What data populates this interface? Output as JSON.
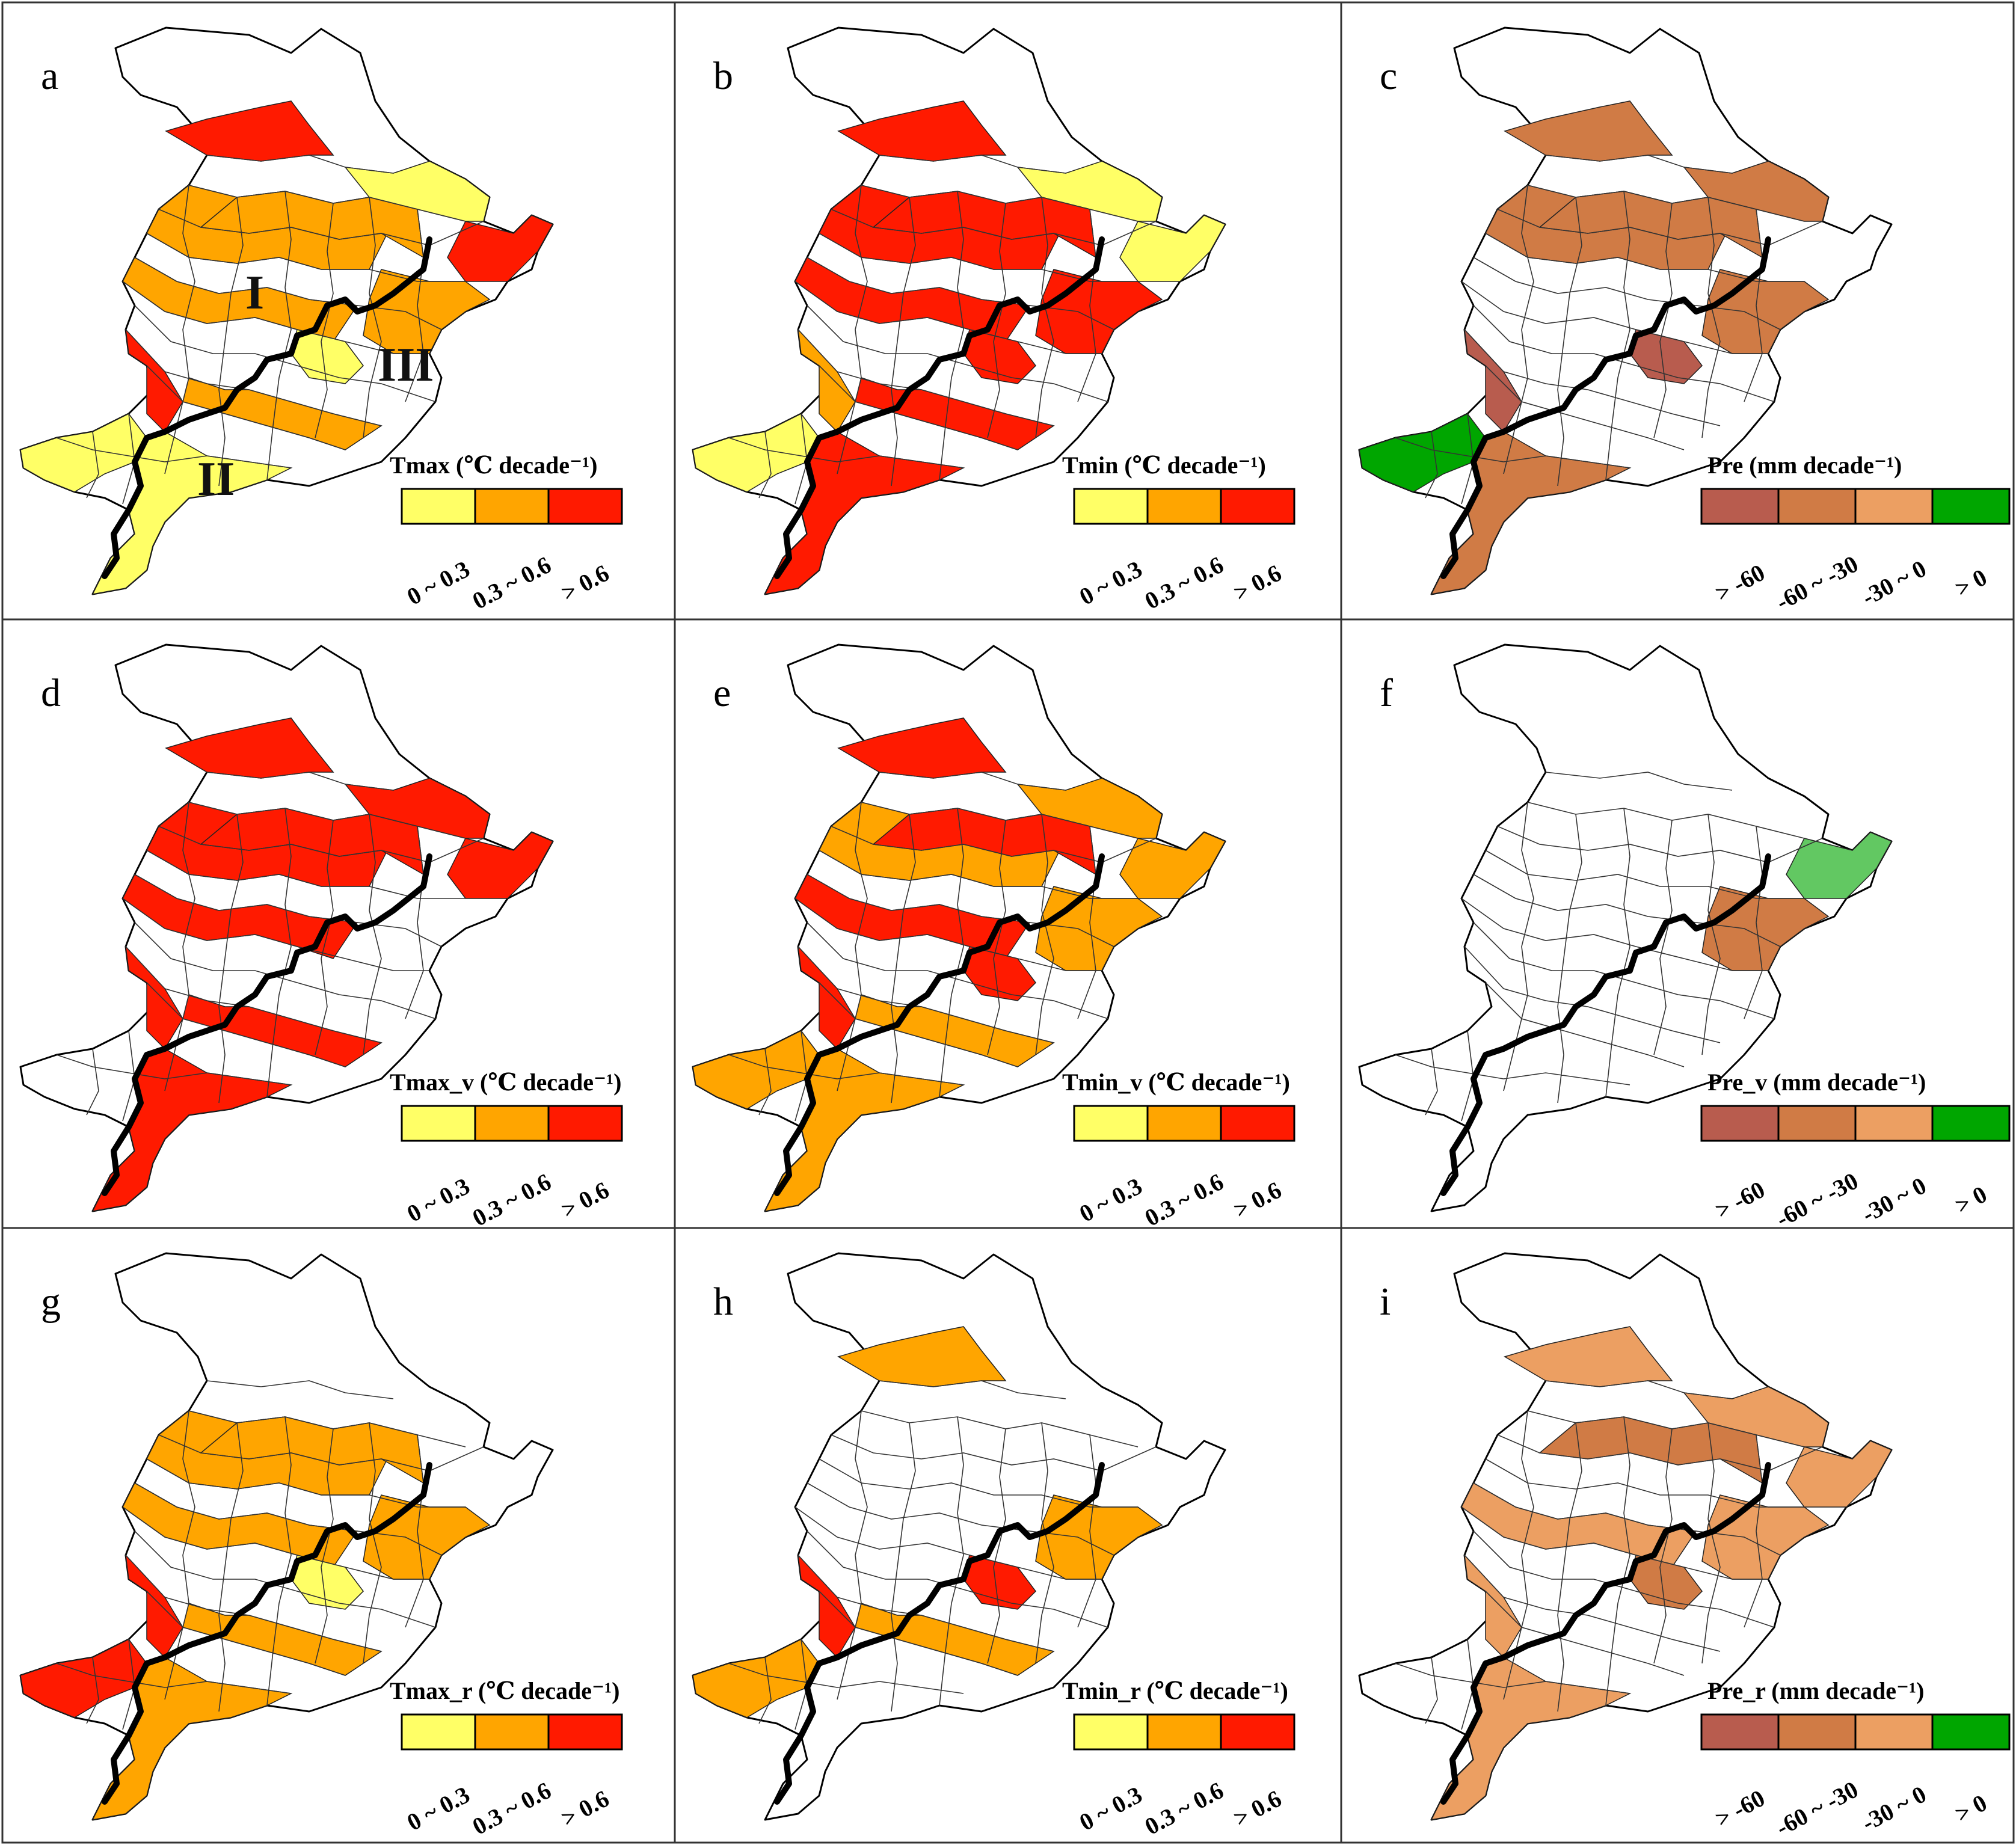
{
  "colors": {
    "t_low": "#ffff66",
    "t_mid": "#ffa500",
    "t_high": "#ff1a00",
    "p_strong": "#b85c4e",
    "p_mid": "#d07b45",
    "p_weak": "#ec9f62",
    "p_pos": "#00a600",
    "p_pos_light": "#62c862"
  },
  "legends": {
    "temp_ticks": [
      "0 ~ 0.3",
      "0.3 ~ 0.6",
      "> 0.6"
    ],
    "pre_ticks": [
      "> -60",
      "-60 ~ -30",
      "-30 ~ 0",
      "> 0"
    ]
  },
  "region_labels": {
    "zone_1": "I",
    "zone_2": "II",
    "zone_3": "III"
  },
  "panels": [
    {
      "letter": "a",
      "legend_title": "Tmax (℃ decade⁻¹)",
      "legend": "temp",
      "fills": [
        "t_mid",
        "t_high",
        "t_low",
        "t_mid",
        "t_mid",
        "t_low",
        "t_mid",
        "t_high",
        "t_low",
        "t_mid",
        "t_low",
        "t_high"
      ]
    },
    {
      "letter": "b",
      "legend_title": "Tmin (℃ decade⁻¹)",
      "legend": "temp",
      "fills": [
        "t_high",
        "t_high",
        "t_low",
        "t_high",
        "t_high",
        "t_high",
        "t_high",
        "t_low",
        "t_low",
        "t_high",
        "t_high",
        "t_mid"
      ]
    },
    {
      "letter": "c",
      "legend_title": "Pre (mm decade⁻¹)",
      "legend": "pre",
      "fills": [
        "p_mid",
        "p_mid",
        "p_mid",
        "none",
        "p_mid",
        "p_strong",
        "p_mid",
        "none",
        "p_pos",
        "none",
        "p_mid",
        "p_strong"
      ]
    },
    {
      "letter": "d",
      "legend_title": "Tmax_v (℃ decade⁻¹)",
      "legend": "temp",
      "fills": [
        "t_high",
        "t_high",
        "t_high",
        "t_high",
        "t_high",
        "none",
        "none",
        "t_high",
        "none",
        "t_high",
        "t_high",
        "t_high"
      ]
    },
    {
      "letter": "e",
      "legend_title": "Tmin_v (℃ decade⁻¹)",
      "legend": "temp",
      "fills": [
        "t_mid",
        "t_high",
        "t_mid",
        "t_high",
        "t_high",
        "t_high",
        "t_mid",
        "t_mid",
        "t_mid",
        "t_mid",
        "t_mid",
        "t_high"
      ]
    },
    {
      "letter": "f",
      "legend_title": "Pre_v (mm decade⁻¹)",
      "legend": "pre",
      "fills": [
        "none",
        "none",
        "none",
        "none",
        "none",
        "none",
        "p_mid",
        "p_pos_light",
        "none",
        "none",
        "none",
        "none"
      ]
    },
    {
      "letter": "g",
      "legend_title": "Tmax_r (℃ decade⁻¹)",
      "legend": "temp",
      "fills": [
        "t_mid",
        "none",
        "none",
        "t_mid",
        "t_mid",
        "t_low",
        "t_mid",
        "none",
        "t_high",
        "t_mid",
        "t_mid",
        "t_high"
      ]
    },
    {
      "letter": "h",
      "legend_title": "Tmin_r (℃ decade⁻¹)",
      "legend": "temp",
      "fills": [
        "none",
        "t_mid",
        "none",
        "none",
        "none",
        "t_high",
        "t_mid",
        "none",
        "t_mid",
        "t_mid",
        "none",
        "t_high"
      ]
    },
    {
      "letter": "i",
      "legend_title": "Pre_r (mm decade⁻¹)",
      "legend": "pre",
      "fills": [
        "none",
        "p_weak",
        "p_weak",
        "p_weak",
        "p_mid",
        "p_mid",
        "p_weak",
        "p_weak",
        "none",
        "none",
        "p_weak",
        "p_weak"
      ]
    }
  ]
}
